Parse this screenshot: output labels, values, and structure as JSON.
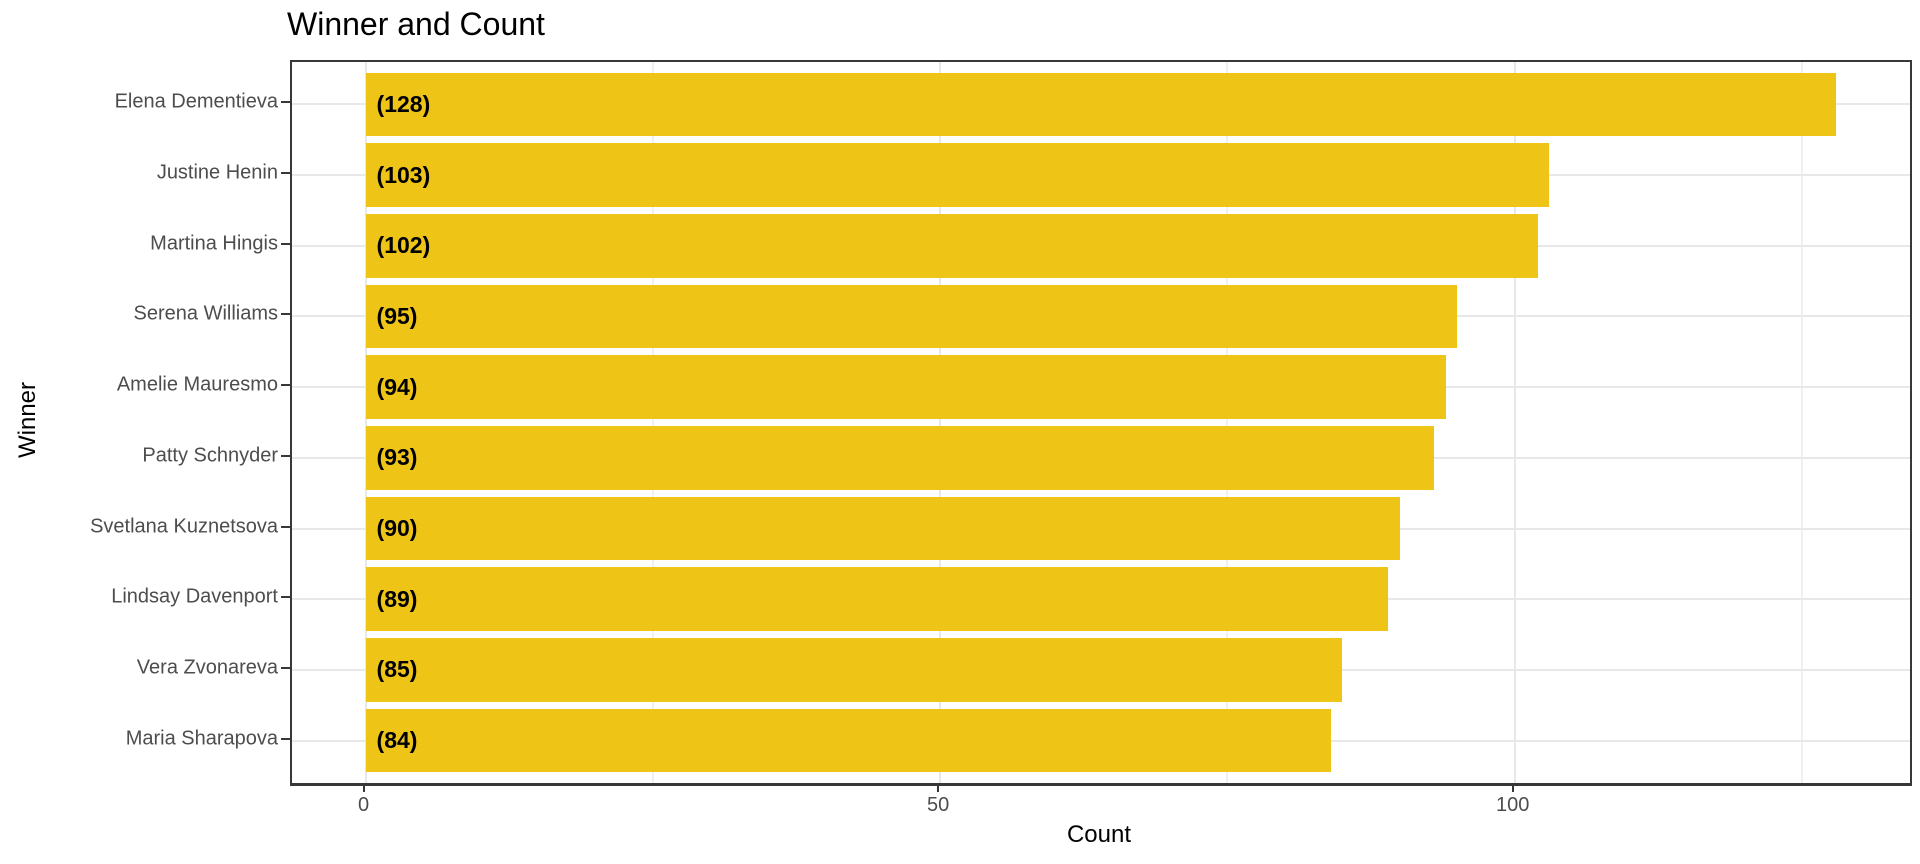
{
  "chart_data": {
    "type": "bar",
    "orientation": "horizontal",
    "title": "Winner and Count",
    "xlabel": "Count",
    "ylabel": "Winner",
    "categories": [
      "Elena Dementieva",
      "Justine Henin",
      "Martina Hingis",
      "Serena Williams",
      "Amelie Mauresmo",
      "Patty Schnyder",
      "Svetlana Kuznetsova",
      "Lindsay Davenport",
      "Vera Zvonareva",
      "Maria Sharapova"
    ],
    "values": [
      128,
      103,
      102,
      95,
      94,
      93,
      90,
      89,
      85,
      84
    ],
    "bar_labels": [
      "(128)",
      "(103)",
      "(102)",
      "(95)",
      "(94)",
      "(93)",
      "(90)",
      "(89)",
      "(85)",
      "(84)"
    ],
    "x_ticks": [
      0,
      50,
      100
    ],
    "x_tick_labels": [
      "0",
      "50",
      "100"
    ],
    "x_minor_ticks": [
      25,
      75,
      125
    ],
    "xlim": [
      -6.4,
      134.4
    ],
    "bar_width_fraction": 0.9,
    "grid": true,
    "legend": "none",
    "colors": {
      "bar": "#EEC417",
      "grid_major": "#E8E8E8",
      "grid_minor": "#F0F0F0",
      "axis_text": "#4D4D4D",
      "tick_mark": "#383838",
      "panel_border": "#383838",
      "title_text": "#000000"
    }
  }
}
